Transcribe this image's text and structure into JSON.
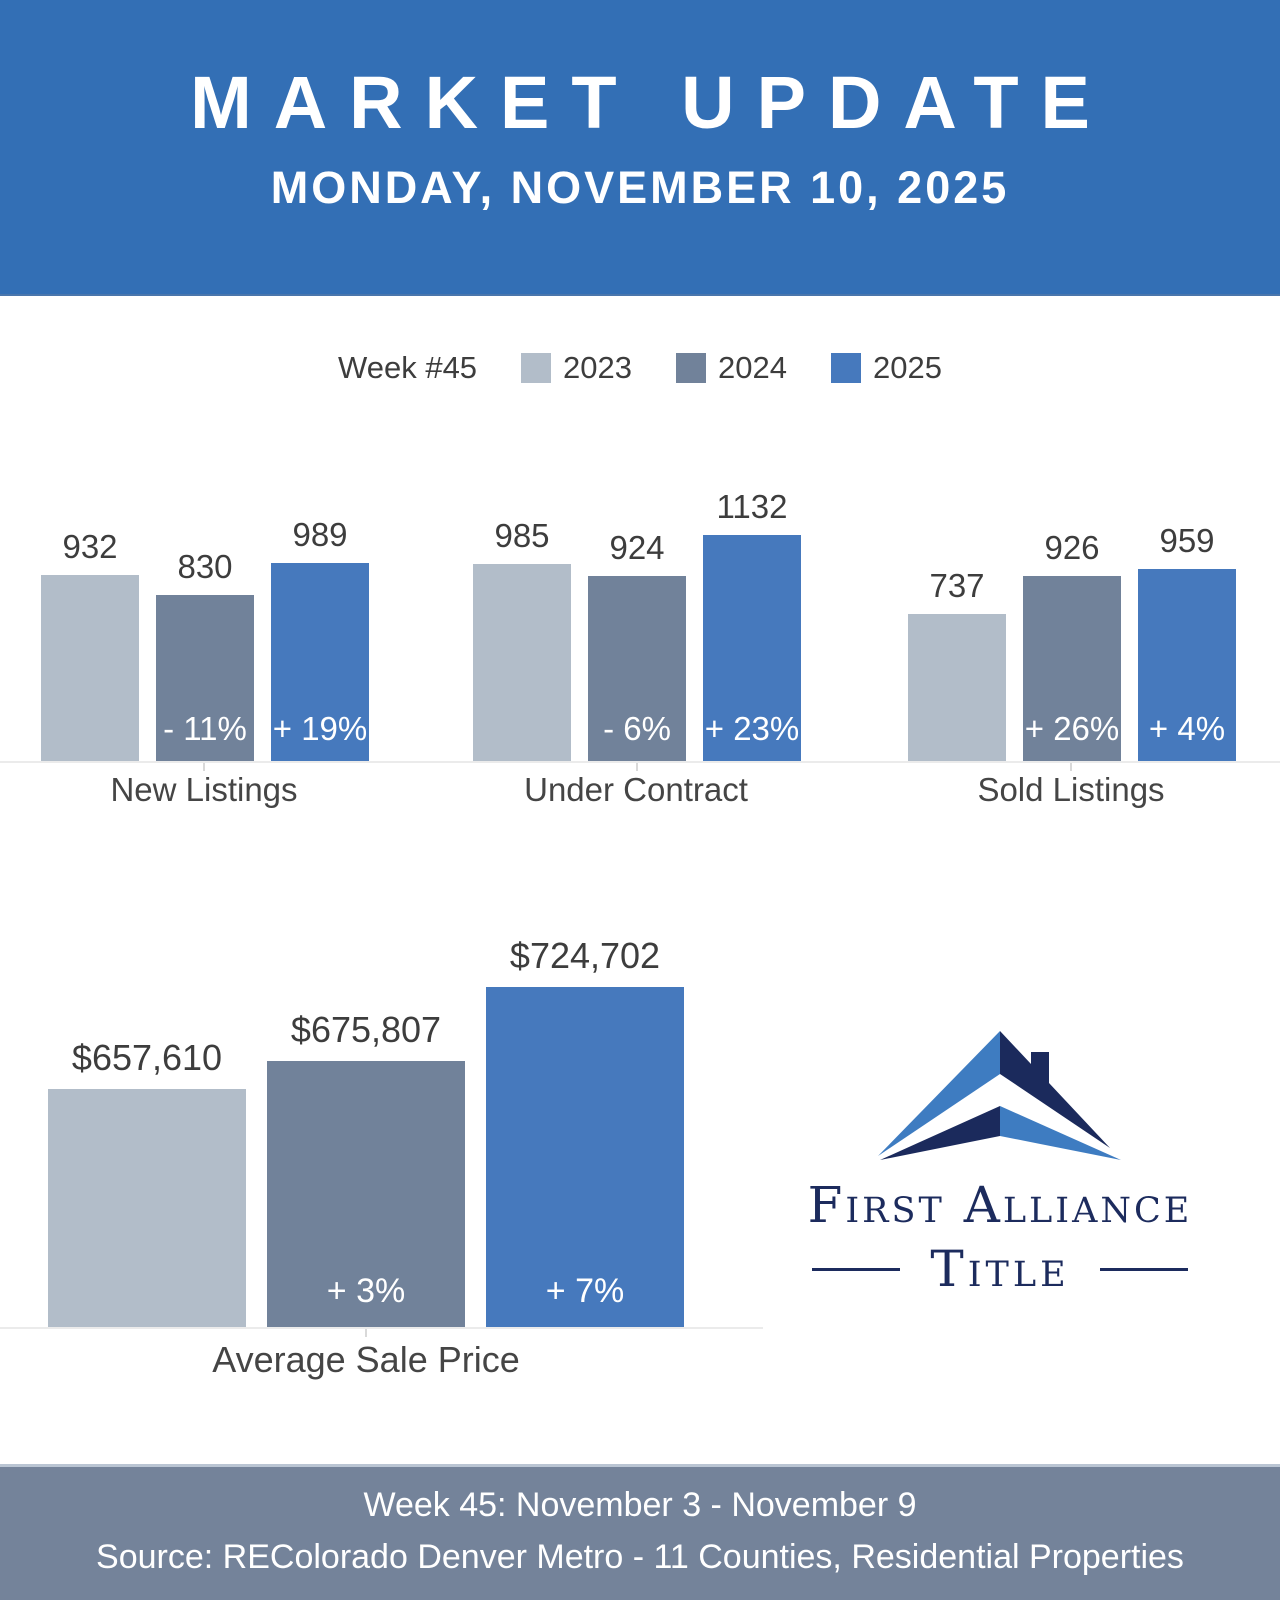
{
  "header": {
    "title": "MARKET UPDATE",
    "date": "MONDAY, NOVEMBER 10, 2025"
  },
  "legend": {
    "label": "Week #45",
    "series": [
      {
        "name": "2023",
        "color": "#B2BDC9"
      },
      {
        "name": "2024",
        "color": "#71829A"
      },
      {
        "name": "2025",
        "color": "#4679BD"
      }
    ]
  },
  "chart_data": [
    {
      "type": "bar",
      "title": "New Listings",
      "categories": [
        "2023",
        "2024",
        "2025"
      ],
      "values": [
        932,
        830,
        989
      ],
      "value_labels": [
        "932",
        "830",
        "989"
      ],
      "pct_labels": [
        "",
        "- 11%",
        "+ 19%"
      ],
      "ylim": [
        0,
        1200
      ],
      "grid": false,
      "legend_position": "top"
    },
    {
      "type": "bar",
      "title": "Under Contract",
      "categories": [
        "2023",
        "2024",
        "2025"
      ],
      "values": [
        985,
        924,
        1132
      ],
      "value_labels": [
        "985",
        "924",
        "1132"
      ],
      "pct_labels": [
        "",
        "- 6%",
        "+ 23%"
      ],
      "ylim": [
        0,
        1200
      ],
      "grid": false,
      "legend_position": "top"
    },
    {
      "type": "bar",
      "title": "Sold Listings",
      "categories": [
        "2023",
        "2024",
        "2025"
      ],
      "values": [
        737,
        926,
        959
      ],
      "value_labels": [
        "737",
        "926",
        "959"
      ],
      "pct_labels": [
        "",
        "+ 26%",
        "+ 4%"
      ],
      "ylim": [
        0,
        1200
      ],
      "grid": false,
      "legend_position": "top"
    },
    {
      "type": "bar",
      "title": "Average Sale Price",
      "categories": [
        "2023",
        "2024",
        "2025"
      ],
      "values": [
        657610,
        675807,
        724702
      ],
      "value_labels": [
        "$657,610",
        "$675,807",
        "$724,702"
      ],
      "pct_labels": [
        "",
        "+ 3%",
        "+ 7%"
      ],
      "ylim": [
        500000,
        760000
      ],
      "grid": false,
      "legend_position": "top"
    }
  ],
  "logo": {
    "name_line1": "First Alliance",
    "name_line2": "Title",
    "colors": {
      "navy": "#1B2A5C",
      "blue": "#3E7CC1"
    }
  },
  "footer": {
    "line1": "Week 45: November 3 - November 9",
    "line2": "Source: REColorado Denver Metro - 11 Counties, Residential Properties"
  },
  "colors": {
    "header_bg": "#336FB5",
    "footer_bg": "#74839A",
    "baseline": "#EBEBEB",
    "text": "#3D3D3D"
  }
}
